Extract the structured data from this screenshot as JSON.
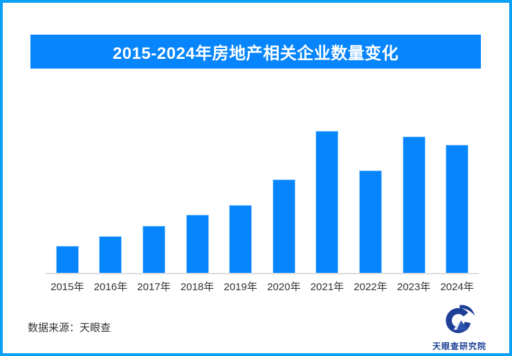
{
  "frame": {
    "border_color": "#0AA0F5"
  },
  "header": {
    "title": "2015-2024年房地产相关企业数量变化",
    "banner_bg": "#0685FC",
    "title_color": "#FFFFFF"
  },
  "chart_data": {
    "type": "bar",
    "title": "2015-2024年房地产相关企业数量变化",
    "categories": [
      "2015年",
      "2016年",
      "2017年",
      "2018年",
      "2019年",
      "2020年",
      "2021年",
      "2022年",
      "2023年",
      "2024年"
    ],
    "values": [
      19,
      26,
      33,
      41,
      48,
      66,
      100,
      72,
      96,
      90
    ],
    "xlabel": "",
    "ylabel": "",
    "ylim": [
      0,
      120
    ],
    "grid": false,
    "legend": "none",
    "y_axis_shown": false,
    "value_labels_shown": false,
    "bar_color": "#0685FC",
    "bar_edge_color": "#9ED1FE",
    "axis_line_color": "#DDDDDD",
    "tick_label_color": "#333333"
  },
  "footer": {
    "source_label": "数据来源：天眼查",
    "logo_text": "天眼查研究院",
    "logo_color": "#1E3F97",
    "logo_triangle_color": "#2D53AC",
    "logo_icon": "tianyancha-eye-icon"
  }
}
